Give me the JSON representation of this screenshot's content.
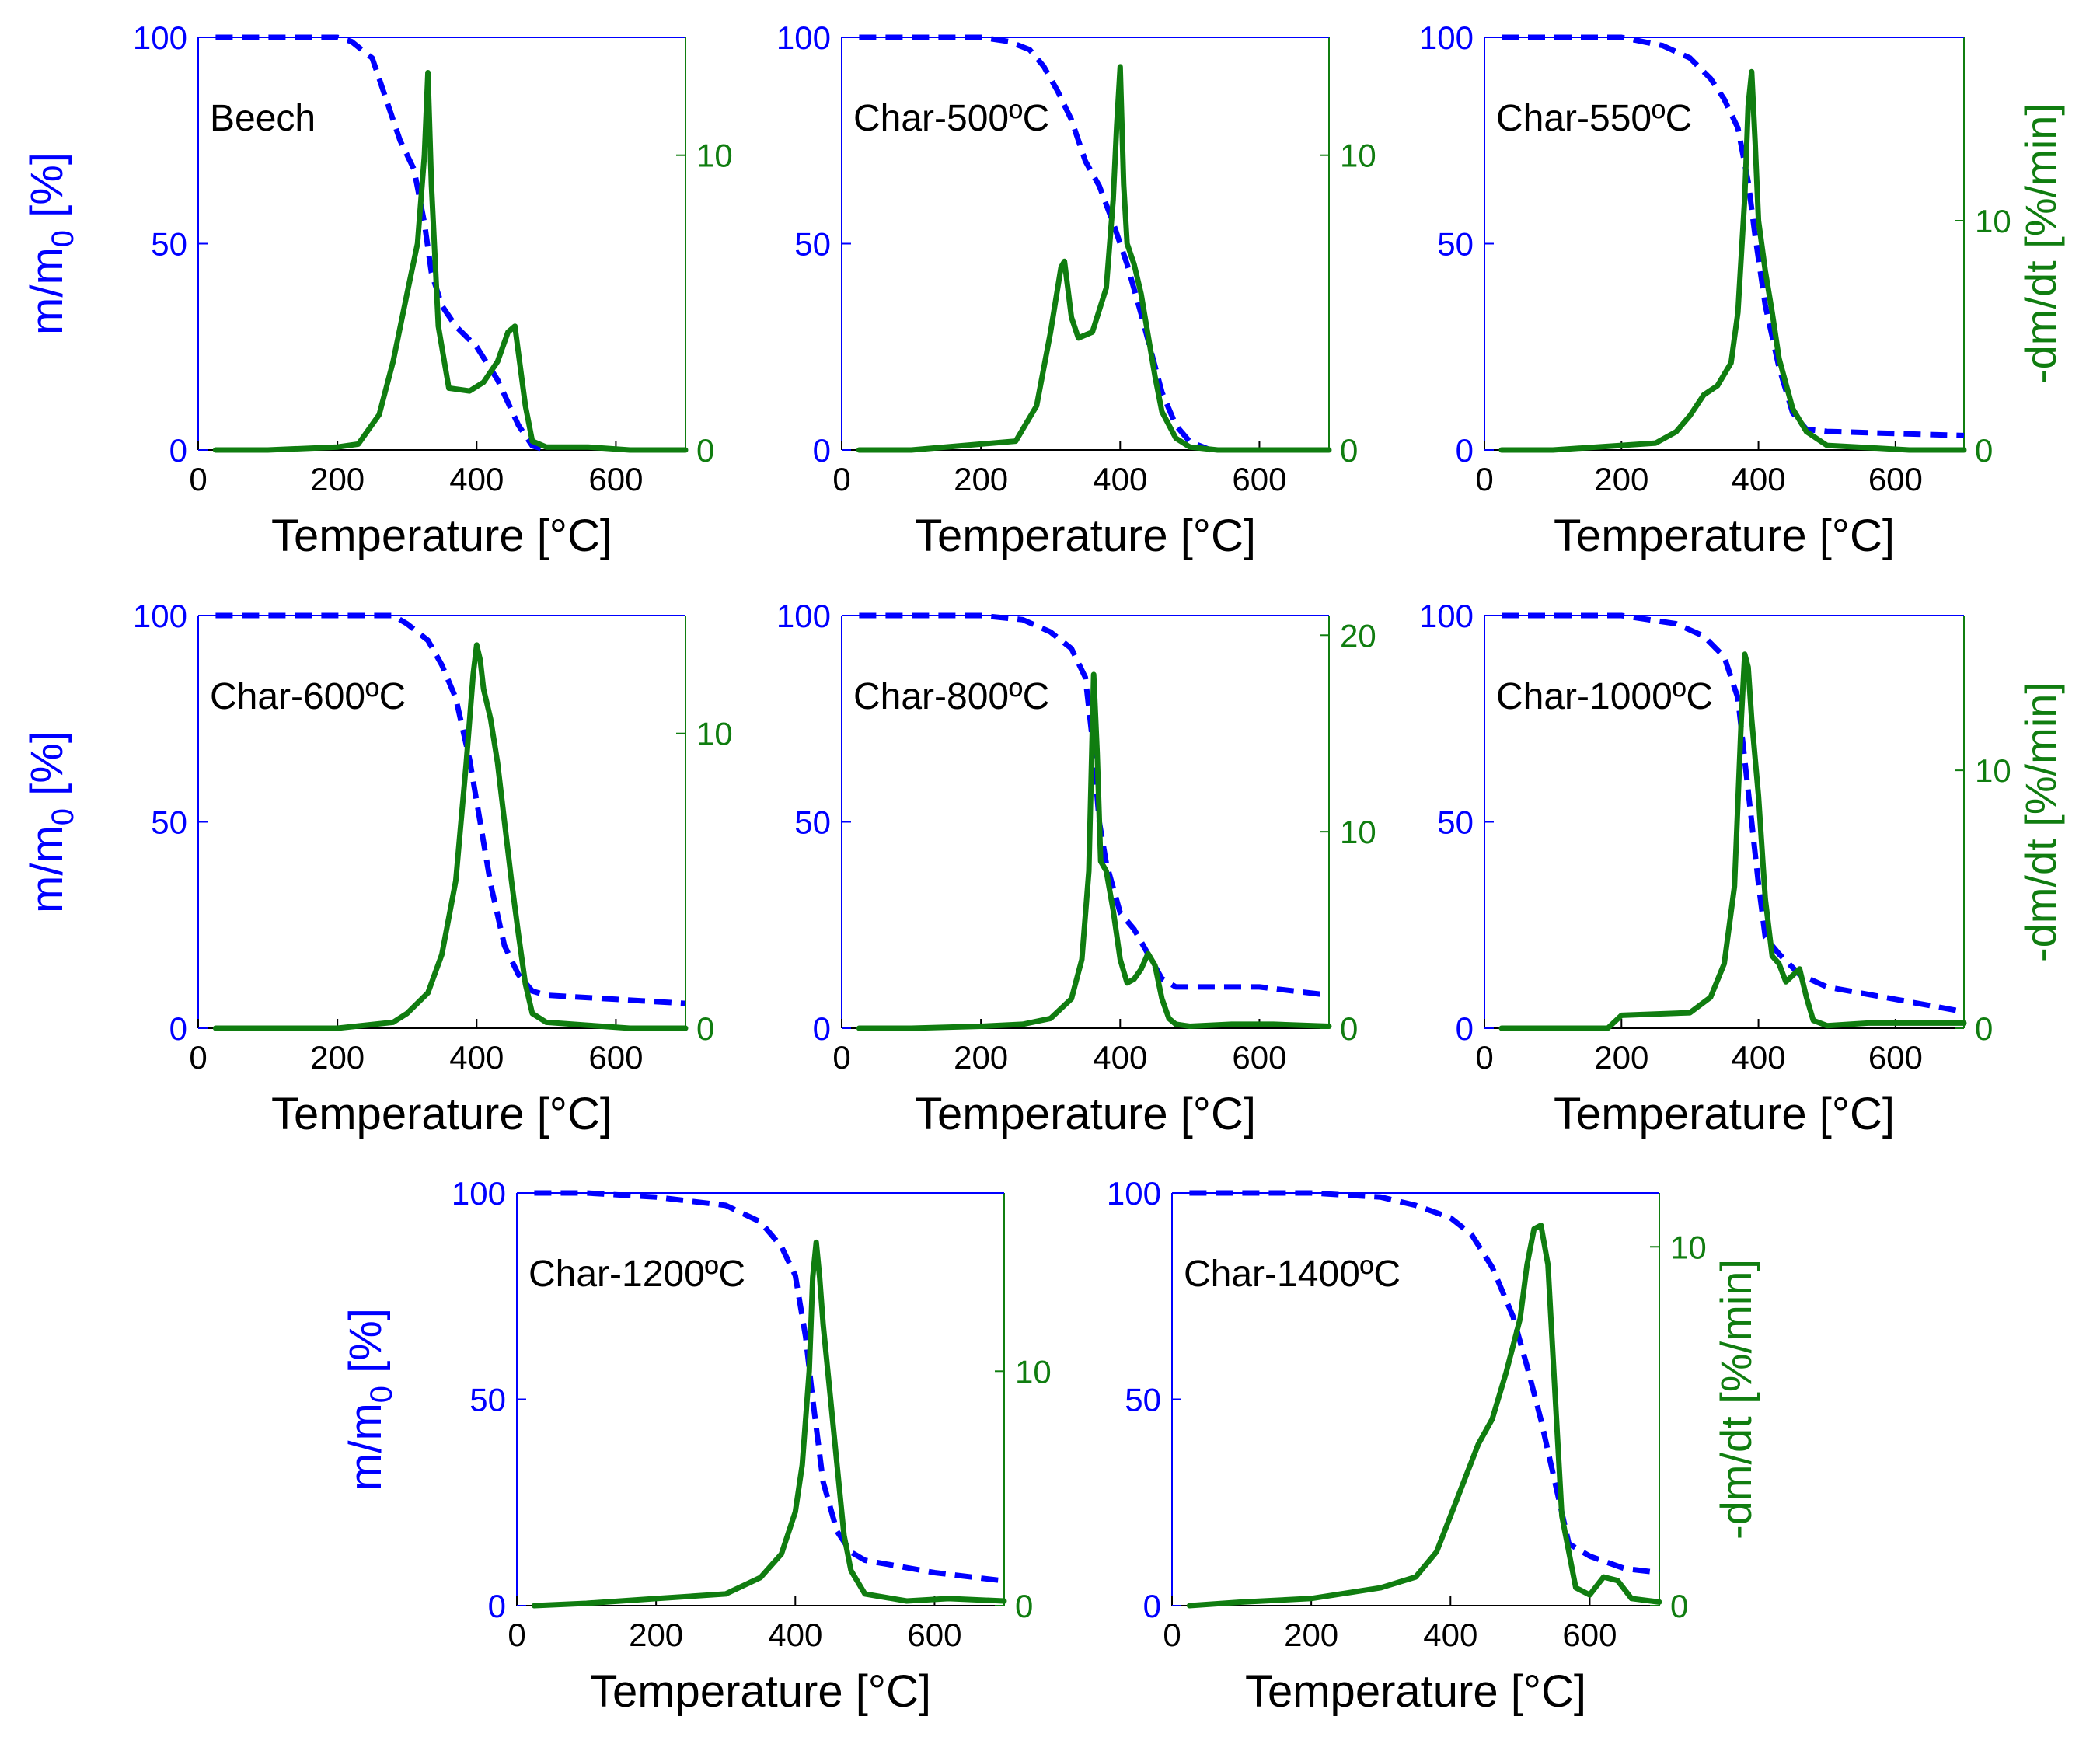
{
  "chart_data": {
    "type": "line",
    "description_units": {
      "x": "Temperature [°C]",
      "y_left": "m/m0 [%]",
      "y_right": "-dm/dt [%/min]"
    },
    "colors": {
      "mass": "#0000ff",
      "rate": "#107d10",
      "axes": "#000000"
    },
    "panels": [
      {
        "label": "Beech",
        "xlabel": "Temperature [°C]",
        "xticks": [
          0,
          200,
          400,
          600
        ],
        "xlim": [
          0,
          700
        ],
        "ylabel_left": "m/m",
        "ylabel_left_sub": "0",
        "ylabel_left_suffix": " [%]",
        "show_left_label": true,
        "yticks_left": [
          0,
          50,
          100
        ],
        "ylim_left": [
          0,
          100
        ],
        "ylabel_right": "",
        "show_right_label": false,
        "yticks_right": [
          0,
          10
        ],
        "ylim_right": [
          0,
          14
        ],
        "mass": {
          "x": [
            25,
            100,
            200,
            220,
            250,
            270,
            290,
            310,
            325,
            335,
            350,
            370,
            400,
            430,
            460,
            480,
            500
          ],
          "y": [
            100,
            100,
            100,
            99,
            95,
            85,
            75,
            68,
            55,
            43,
            35,
            30,
            25,
            17,
            6,
            1,
            0
          ]
        },
        "rate": {
          "x": [
            25,
            100,
            200,
            230,
            260,
            280,
            300,
            315,
            325,
            330,
            335,
            345,
            360,
            390,
            410,
            430,
            445,
            455,
            470,
            480,
            500,
            560,
            620,
            700
          ],
          "y": [
            0,
            0,
            0.1,
            0.2,
            1.2,
            3,
            5.3,
            7,
            10,
            12.8,
            9,
            4.2,
            2.1,
            2,
            2.3,
            3,
            4,
            4.2,
            1.5,
            0.3,
            0.1,
            0.1,
            0,
            0
          ]
        }
      },
      {
        "label": "Char-500ºC",
        "xlabel": "Temperature [°C]",
        "xticks": [
          0,
          200,
          400,
          600
        ],
        "xlim": [
          0,
          700
        ],
        "ylabel_left": "",
        "show_left_label": false,
        "yticks_left": [
          0,
          50,
          100
        ],
        "ylim_left": [
          0,
          100
        ],
        "ylabel_right": "",
        "show_right_label": false,
        "yticks_right": [
          0,
          10
        ],
        "ylim_right": [
          0,
          14
        ],
        "mass": {
          "x": [
            25,
            100,
            200,
            240,
            270,
            290,
            310,
            330,
            350,
            370,
            390,
            410,
            430,
            460,
            480,
            500,
            530
          ],
          "y": [
            100,
            100,
            100,
            99,
            97,
            93,
            87,
            80,
            70,
            64,
            55,
            45,
            33,
            14,
            6,
            2,
            0
          ]
        },
        "rate": {
          "x": [
            25,
            100,
            200,
            250,
            280,
            300,
            315,
            320,
            330,
            340,
            360,
            380,
            390,
            395,
            400,
            405,
            410,
            420,
            430,
            450,
            460,
            480,
            500,
            540,
            600,
            700
          ],
          "y": [
            0,
            0,
            0.2,
            0.3,
            1.5,
            4,
            6.2,
            6.4,
            4.5,
            3.8,
            4,
            5.5,
            8.5,
            11,
            13,
            9,
            7,
            6.3,
            5.3,
            2.5,
            1.3,
            0.4,
            0.1,
            0,
            0,
            0
          ]
        }
      },
      {
        "label": "Char-550ºC",
        "xlabel": "Temperature [°C]",
        "xticks": [
          0,
          200,
          400,
          600
        ],
        "xlim": [
          0,
          700
        ],
        "ylabel_left": "",
        "show_left_label": false,
        "yticks_left": [
          0,
          50,
          100
        ],
        "ylim_left": [
          0,
          100
        ],
        "ylabel_right": "-dm/dt [%/min]",
        "show_right_label": true,
        "yticks_right": [
          0,
          10
        ],
        "ylim_right": [
          0,
          18
        ],
        "mass": {
          "x": [
            25,
            100,
            200,
            260,
            300,
            330,
            350,
            370,
            385,
            395,
            410,
            430,
            450,
            470,
            500,
            600,
            700
          ],
          "y": [
            100,
            100,
            100,
            98,
            95,
            90,
            85,
            78,
            65,
            52,
            35,
            20,
            9,
            5,
            4.5,
            4,
            3.5
          ]
        },
        "rate": {
          "x": [
            25,
            100,
            200,
            250,
            280,
            300,
            320,
            340,
            360,
            370,
            380,
            385,
            390,
            395,
            400,
            410,
            420,
            430,
            450,
            470,
            500,
            560,
            620,
            700
          ],
          "y": [
            0,
            0,
            0.2,
            0.3,
            0.8,
            1.5,
            2.4,
            2.8,
            3.8,
            6,
            11,
            15,
            16.5,
            13.5,
            10,
            7.8,
            6,
            4,
            1.8,
            0.8,
            0.2,
            0.1,
            0,
            0
          ]
        }
      },
      {
        "label": "Char-600ºC",
        "xlabel": "Temperature [°C]",
        "xticks": [
          0,
          200,
          400,
          600
        ],
        "xlim": [
          0,
          700
        ],
        "ylabel_left": "m/m",
        "ylabel_left_sub": "0",
        "ylabel_left_suffix": " [%]",
        "show_left_label": true,
        "yticks_left": [
          0,
          50,
          100
        ],
        "ylim_left": [
          0,
          100
        ],
        "ylabel_right": "",
        "show_right_label": false,
        "yticks_right": [
          0,
          10
        ],
        "ylim_right": [
          0,
          14
        ],
        "mass": {
          "x": [
            25,
            100,
            200,
            280,
            300,
            330,
            350,
            370,
            390,
            400,
            420,
            440,
            460,
            480,
            500,
            600,
            700
          ],
          "y": [
            100,
            100,
            100,
            100,
            98,
            94,
            88,
            80,
            65,
            55,
            35,
            20,
            13,
            9,
            8,
            7,
            6
          ]
        },
        "rate": {
          "x": [
            25,
            100,
            200,
            280,
            300,
            330,
            350,
            370,
            385,
            395,
            400,
            405,
            410,
            420,
            430,
            440,
            450,
            460,
            470,
            480,
            500,
            560,
            620,
            700
          ],
          "y": [
            0,
            0,
            0,
            0.2,
            0.5,
            1.2,
            2.5,
            5,
            9,
            12,
            13,
            12.5,
            11.5,
            10.5,
            9,
            7,
            5,
            3.2,
            1.5,
            0.5,
            0.2,
            0.1,
            0,
            0
          ]
        }
      },
      {
        "label": "Char-800ºC",
        "xlabel": "Temperature [°C]",
        "xticks": [
          0,
          200,
          400,
          600
        ],
        "xlim": [
          0,
          700
        ],
        "ylabel_left": "",
        "show_left_label": false,
        "yticks_left": [
          0,
          50,
          100
        ],
        "ylim_left": [
          0,
          100
        ],
        "ylabel_right": "",
        "show_right_label": false,
        "yticks_right": [
          0,
          10,
          20
        ],
        "ylim_right": [
          0,
          21
        ],
        "mass": {
          "x": [
            25,
            100,
            200,
            260,
            300,
            330,
            350,
            360,
            365,
            370,
            380,
            400,
            420,
            440,
            460,
            480,
            600,
            700
          ],
          "y": [
            100,
            100,
            100,
            99,
            96,
            92,
            85,
            70,
            60,
            50,
            40,
            28,
            24,
            18,
            12,
            10,
            10,
            8
          ]
        },
        "rate": {
          "x": [
            25,
            100,
            200,
            260,
            300,
            330,
            345,
            355,
            362,
            367,
            372,
            380,
            390,
            400,
            410,
            420,
            430,
            440,
            450,
            460,
            470,
            480,
            500,
            560,
            620,
            700
          ],
          "y": [
            0,
            0,
            0.1,
            0.2,
            0.5,
            1.5,
            3.5,
            8,
            18,
            14,
            8.5,
            8,
            6,
            3.5,
            2.3,
            2.5,
            3,
            3.8,
            3.2,
            1.5,
            0.5,
            0.2,
            0.1,
            0.2,
            0.2,
            0.1
          ]
        }
      },
      {
        "label": "Char-1000ºC",
        "xlabel": "Temperature [°C]",
        "xticks": [
          0,
          200,
          400,
          600
        ],
        "xlim": [
          0,
          700
        ],
        "ylabel_left": "",
        "show_left_label": false,
        "yticks_left": [
          0,
          50,
          100
        ],
        "ylim_left": [
          0,
          100
        ],
        "ylabel_right": "-dm/dt [%/min]",
        "show_right_label": true,
        "yticks_right": [
          0,
          10
        ],
        "ylim_right": [
          0,
          16
        ],
        "mass": {
          "x": [
            25,
            100,
            200,
            280,
            320,
            350,
            370,
            380,
            390,
            400,
            410,
            430,
            460,
            500,
            600,
            700
          ],
          "y": [
            100,
            100,
            100,
            98,
            95,
            90,
            80,
            65,
            50,
            35,
            22,
            18,
            13,
            10,
            7,
            4
          ]
        },
        "rate": {
          "x": [
            25,
            100,
            180,
            200,
            300,
            330,
            350,
            365,
            375,
            380,
            385,
            390,
            400,
            410,
            420,
            430,
            440,
            460,
            470,
            480,
            500,
            560,
            620,
            700
          ],
          "y": [
            0,
            0,
            0,
            0.5,
            0.6,
            1.2,
            2.5,
            5.5,
            12,
            14.5,
            14,
            12,
            9,
            5,
            2.8,
            2.5,
            1.8,
            2.3,
            1.2,
            0.3,
            0.1,
            0.2,
            0.2,
            0.2
          ]
        }
      },
      {
        "label": "Char-1200ºC",
        "xlabel": "Temperature [°C]",
        "xticks": [
          0,
          200,
          400,
          600
        ],
        "xlim": [
          0,
          700
        ],
        "ylabel_left": "m/m",
        "ylabel_left_sub": "0",
        "ylabel_left_suffix": " [%]",
        "show_left_label": true,
        "yticks_left": [
          0,
          50,
          100
        ],
        "ylim_left": [
          0,
          100
        ],
        "ylabel_right": "",
        "show_right_label": false,
        "yticks_right": [
          0,
          10
        ],
        "ylim_right": [
          0,
          17.6
        ],
        "mass": {
          "x": [
            25,
            100,
            200,
            300,
            350,
            380,
            400,
            415,
            425,
            440,
            460,
            480,
            500,
            600,
            700
          ],
          "y": [
            100,
            100,
            99,
            97,
            93,
            87,
            80,
            65,
            50,
            30,
            18,
            13,
            11,
            8,
            6
          ]
        },
        "rate": {
          "x": [
            25,
            100,
            200,
            300,
            350,
            380,
            400,
            410,
            420,
            425,
            430,
            435,
            440,
            450,
            460,
            470,
            480,
            500,
            560,
            620,
            700
          ],
          "y": [
            0,
            0.1,
            0.3,
            0.5,
            1.2,
            2.2,
            4,
            6,
            10,
            14,
            15.5,
            14,
            12,
            9,
            6,
            3,
            1.5,
            0.5,
            0.2,
            0.3,
            0.2
          ]
        }
      },
      {
        "label": "Char-1400ºC",
        "xlabel": "Temperature [°C]",
        "xticks": [
          0,
          200,
          400,
          600
        ],
        "xlim": [
          0,
          700
        ],
        "ylabel_left": "",
        "show_left_label": false,
        "yticks_left": [
          0,
          50,
          100
        ],
        "ylim_left": [
          0,
          100
        ],
        "ylabel_right": "-dm/dt [%/min]",
        "show_right_label": true,
        "yticks_right": [
          0,
          10
        ],
        "ylim_right": [
          0,
          11.5
        ],
        "mass": {
          "x": [
            25,
            100,
            200,
            300,
            350,
            400,
            430,
            460,
            490,
            510,
            530,
            550,
            570,
            600,
            650,
            700
          ],
          "y": [
            100,
            100,
            100,
            99,
            97,
            94,
            90,
            82,
            70,
            58,
            45,
            30,
            15,
            12,
            9,
            8
          ]
        },
        "rate": {
          "x": [
            25,
            100,
            200,
            300,
            350,
            380,
            400,
            420,
            440,
            460,
            480,
            500,
            510,
            520,
            530,
            540,
            550,
            560,
            580,
            600,
            620,
            640,
            660,
            700
          ],
          "y": [
            0,
            0.1,
            0.2,
            0.5,
            0.8,
            1.5,
            2.5,
            3.5,
            4.5,
            5.2,
            6.5,
            8,
            9.5,
            10.5,
            10.6,
            9.5,
            6,
            2.5,
            0.5,
            0.3,
            0.8,
            0.7,
            0.2,
            0.1
          ]
        }
      }
    ]
  }
}
